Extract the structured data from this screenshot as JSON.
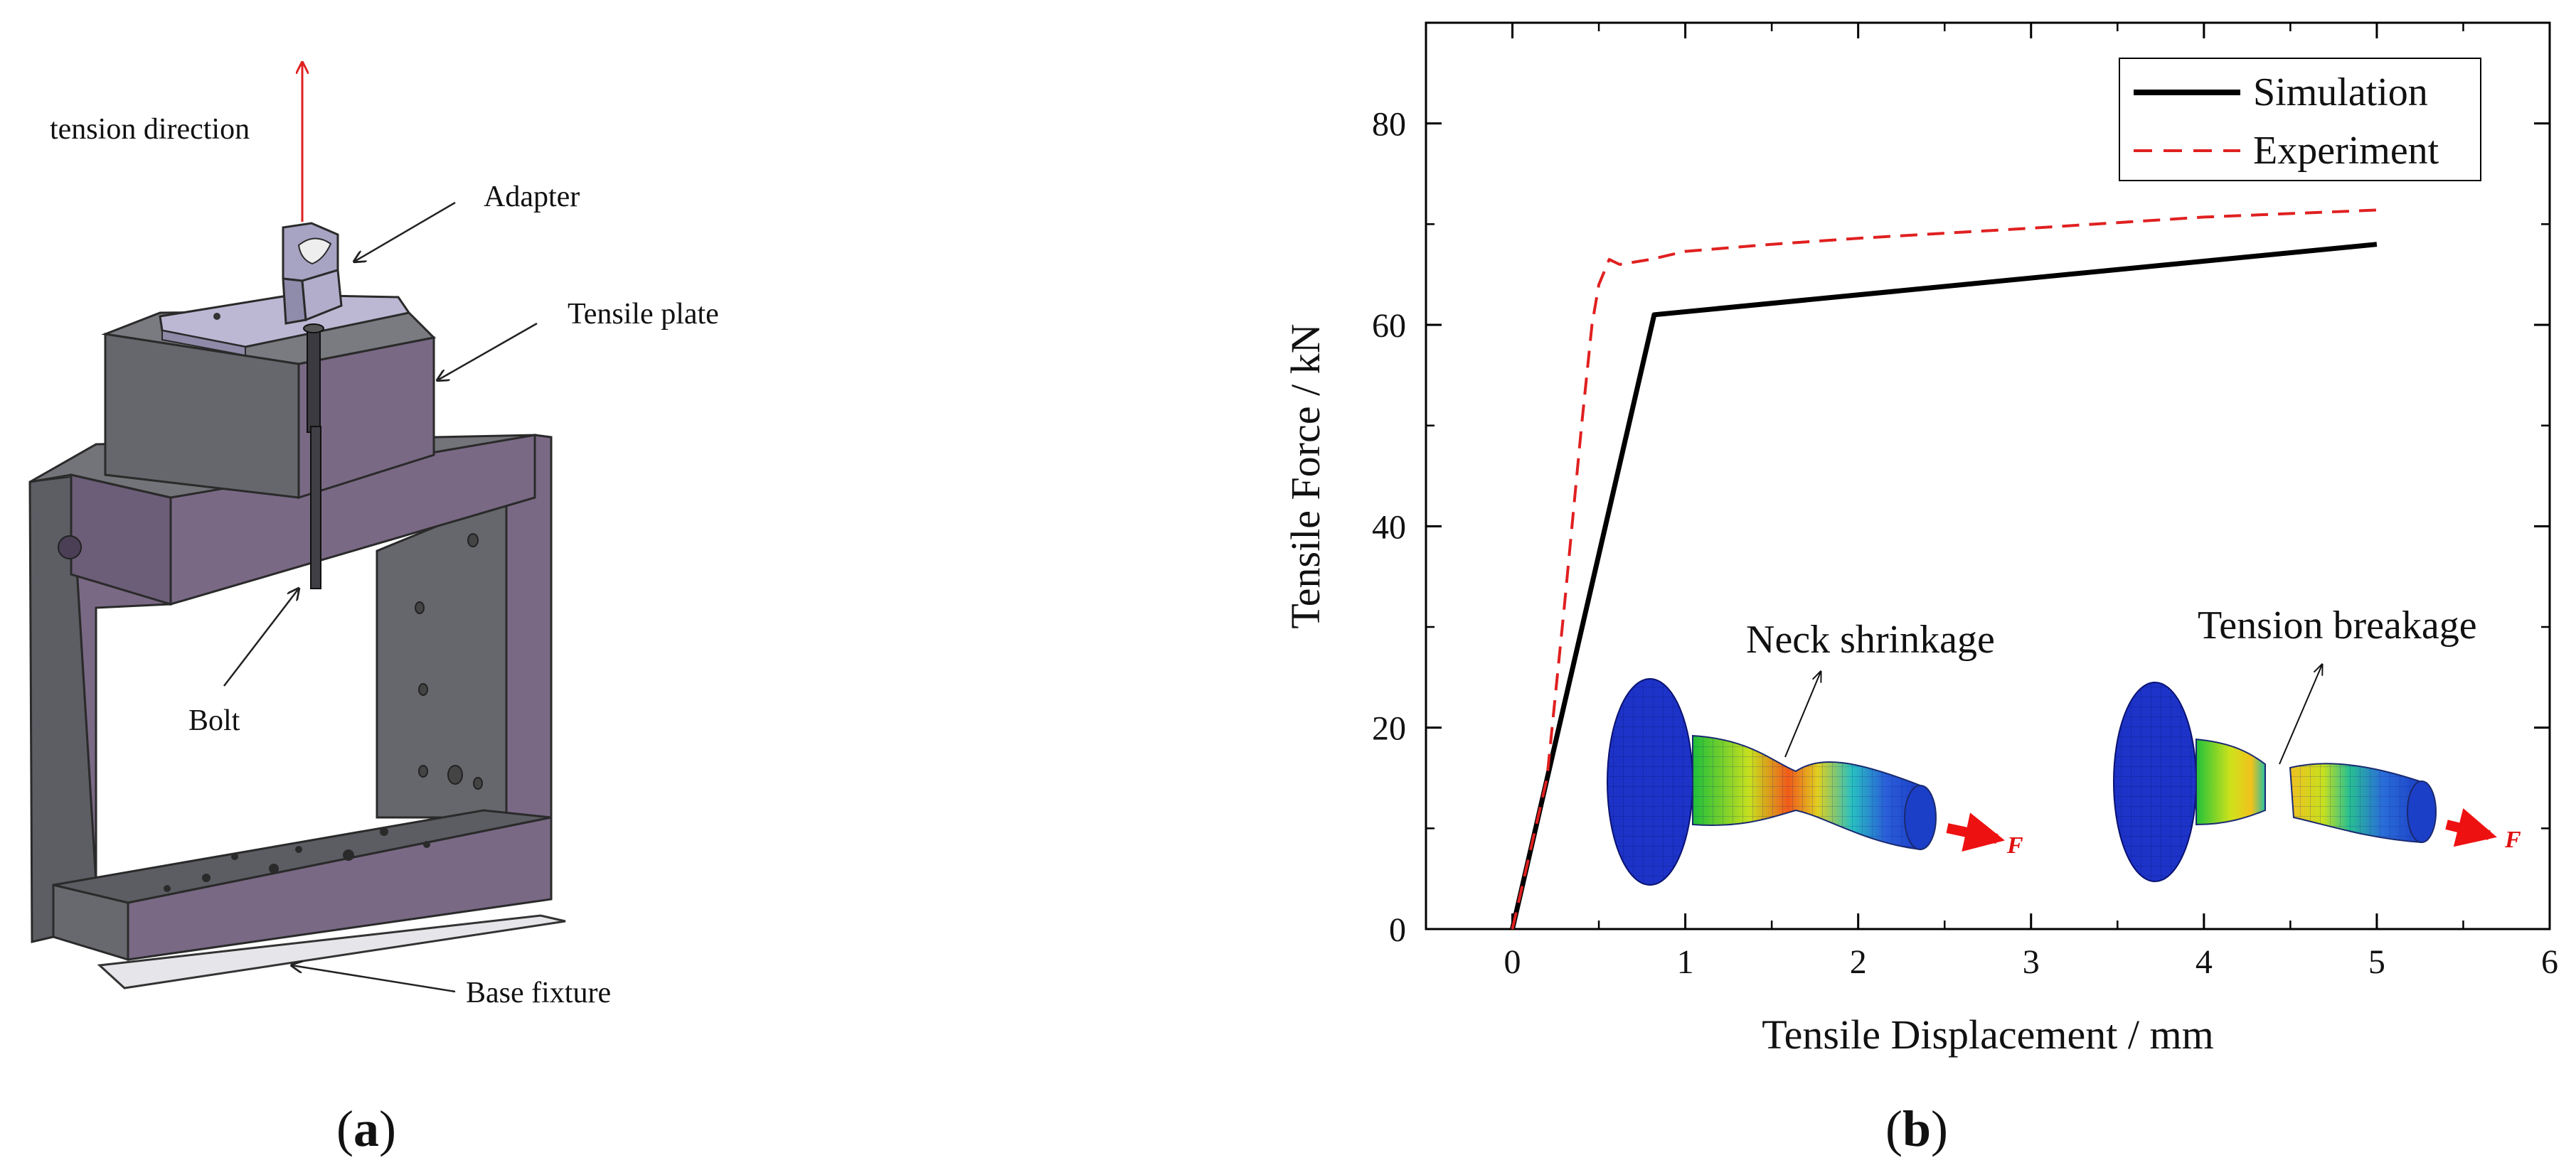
{
  "panel_a": {
    "label_prefix": "(",
    "label_letter": "a",
    "label_suffix": ")",
    "callouts": {
      "tension_direction": "tension direction",
      "adapter": "Adapter",
      "tensile_plate": "Tensile plate",
      "bolt": "Bolt",
      "base_fixture": "Base fixture"
    },
    "colors": {
      "fixture_face": "#7d6a86",
      "fixture_dark": "#5b5c63",
      "fixture_side": "#6a6b70",
      "adapter": "#b8b4d0",
      "arrow": "#e02020"
    }
  },
  "panel_b": {
    "label_prefix": "(",
    "label_letter": "b",
    "label_suffix": ")",
    "annotations": {
      "neck": "Neck shrinkage",
      "breakage": "Tension breakage",
      "force_symbol_1": "F",
      "force_symbol_2": "F"
    }
  },
  "chart_data": {
    "type": "line",
    "xlabel": "Tensile Displacement / mm",
    "ylabel": "Tensile Force / kN",
    "xlim": [
      -0.5,
      6
    ],
    "ylim": [
      0,
      90
    ],
    "xticks": [
      0,
      1,
      2,
      3,
      4,
      5,
      6
    ],
    "yticks": [
      0,
      20,
      40,
      60,
      80
    ],
    "grid": false,
    "legend_position": "top-right",
    "series": [
      {
        "name": "Simulation",
        "color": "#000000",
        "style": "solid",
        "x": [
          0,
          0.82,
          5.0
        ],
        "y": [
          0,
          61.0,
          68.0
        ]
      },
      {
        "name": "Experiment",
        "color": "#e02020",
        "style": "dashed",
        "x": [
          0,
          0.2,
          0.3,
          0.4,
          0.46,
          0.5,
          0.56,
          0.62,
          0.8,
          1.0,
          1.5,
          2.0,
          3.0,
          4.0,
          5.0
        ],
        "y": [
          0,
          15,
          32,
          50,
          60,
          64,
          66.5,
          66.0,
          66.5,
          67.3,
          68.0,
          68.6,
          69.6,
          70.7,
          71.4
        ]
      }
    ]
  }
}
